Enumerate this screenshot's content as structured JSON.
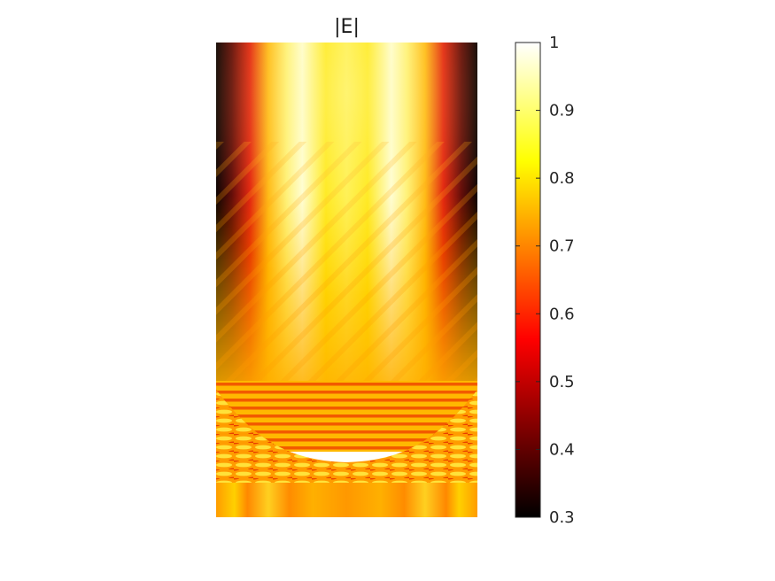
{
  "chart_data": {
    "type": "heatmap",
    "title": "|E|",
    "xlabel": "",
    "ylabel": "",
    "axes_visible": false,
    "colormap": "hot",
    "colorbar": {
      "range": [
        0.3,
        1
      ],
      "ticks": [
        0.3,
        0.4,
        0.5,
        0.6,
        0.7,
        0.8,
        0.9,
        1
      ],
      "tick_labels": [
        "0.3",
        "0.4",
        "0.5",
        "0.6",
        "0.7",
        "0.8",
        "0.9",
        "1"
      ],
      "placement": "right"
    },
    "regions": [
      {
        "name": "upper beam region",
        "edge_value": 0.3,
        "lobe_value": 1.0,
        "background_value": 0.78
      },
      {
        "name": "upper interference band",
        "value": 0.75
      },
      {
        "name": "lower interference band",
        "value": 0.72
      },
      {
        "name": "bottom strip",
        "value": 0.73
      }
    ]
  }
}
